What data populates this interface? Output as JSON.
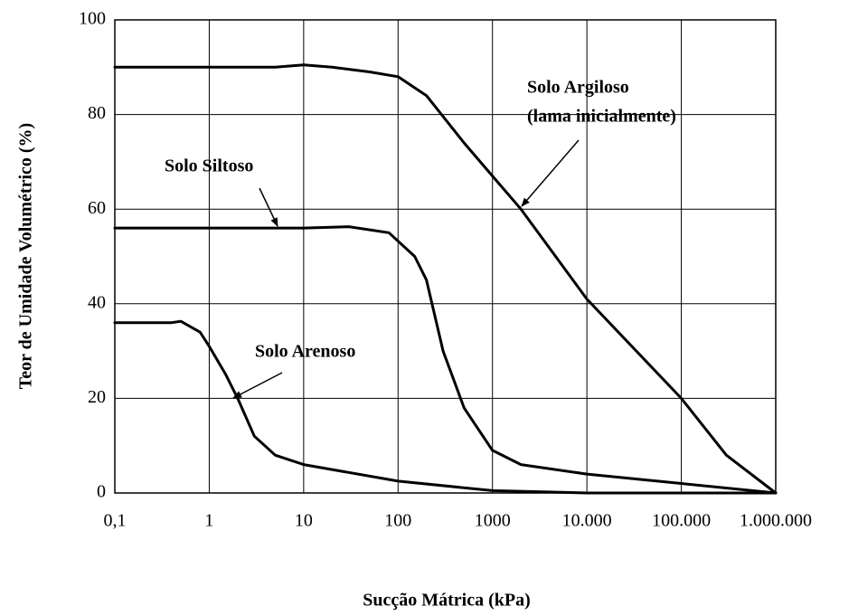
{
  "chart_data": {
    "type": "line",
    "xlabel": "Sucção Mátrica (kPa)",
    "ylabel": "Teor de Umidade Volumétrico (%)",
    "xscale": "log",
    "grid": true,
    "xlim": [
      0.1,
      1000000
    ],
    "xticks": [
      {
        "value": 0.1,
        "label": "0,1"
      },
      1,
      10,
      100,
      1000,
      {
        "value": 10000,
        "label": "10.000"
      },
      {
        "value": 100000,
        "label": "100.000"
      },
      {
        "value": 1000000,
        "label": "1.000.000"
      }
    ],
    "ylim": [
      0,
      100
    ],
    "yticks": [
      0,
      20,
      40,
      60,
      80,
      100
    ],
    "annotations": [
      "(lama inicialmente)"
    ],
    "series": [
      {
        "name": "Solo Argiloso",
        "color": "#000000",
        "x": [
          0.1,
          1,
          5,
          10,
          20,
          50,
          100,
          200,
          500,
          1000,
          2000,
          10000,
          100000,
          300000,
          1000000
        ],
        "values": [
          90,
          90,
          90,
          90.5,
          90,
          89,
          88,
          84,
          74,
          67,
          60,
          41,
          20,
          8,
          0
        ]
      },
      {
        "name": "Solo Siltoso",
        "color": "#000000",
        "x": [
          0.1,
          1,
          10,
          30,
          80,
          150,
          200,
          300,
          500,
          1000,
          2000,
          10000,
          100000,
          1000000
        ],
        "values": [
          56,
          56,
          56,
          56.3,
          55,
          50,
          45,
          30,
          18,
          9,
          6,
          4,
          2,
          0
        ]
      },
      {
        "name": "Solo Arenoso",
        "color": "#000000",
        "x": [
          0.1,
          0.4,
          0.5,
          0.8,
          1,
          1.5,
          2,
          3,
          5,
          10,
          100,
          1000,
          10000,
          1000000
        ],
        "values": [
          36,
          36,
          36.3,
          34,
          31,
          25,
          20,
          12,
          8,
          6,
          2.5,
          0.5,
          0,
          0
        ]
      }
    ]
  }
}
